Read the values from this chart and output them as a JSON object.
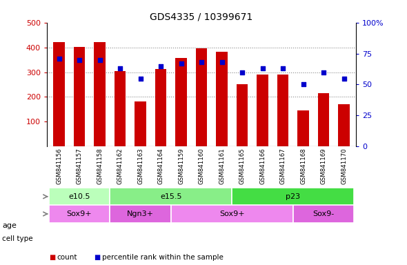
{
  "title": "GDS4335 / 10399671",
  "samples": [
    "GSM841156",
    "GSM841157",
    "GSM841158",
    "GSM841162",
    "GSM841163",
    "GSM841164",
    "GSM841159",
    "GSM841160",
    "GSM841161",
    "GSM841165",
    "GSM841166",
    "GSM841167",
    "GSM841168",
    "GSM841169",
    "GSM841170"
  ],
  "counts": [
    420,
    403,
    422,
    305,
    183,
    313,
    358,
    397,
    383,
    252,
    291,
    291,
    145,
    215,
    172
  ],
  "percentiles": [
    71,
    70,
    70,
    63,
    55,
    65,
    67,
    68,
    68,
    60,
    63,
    63,
    50,
    60,
    55
  ],
  "ylim_left": [
    0,
    500
  ],
  "ylim_right": [
    0,
    100
  ],
  "yticks_left": [
    100,
    200,
    300,
    400,
    500
  ],
  "yticks_right": [
    0,
    25,
    50,
    75,
    100
  ],
  "ytick_right_labels": [
    "0",
    "25",
    "50",
    "75",
    "100%"
  ],
  "age_groups": [
    {
      "label": "e10.5",
      "start": 0,
      "end": 3,
      "color": "#bbffbb"
    },
    {
      "label": "e15.5",
      "start": 3,
      "end": 9,
      "color": "#88ee88"
    },
    {
      "label": "p23",
      "start": 9,
      "end": 15,
      "color": "#44dd44"
    }
  ],
  "cell_type_groups": [
    {
      "label": "Sox9+",
      "start": 0,
      "end": 3,
      "color": "#ee88ee"
    },
    {
      "label": "Ngn3+",
      "start": 3,
      "end": 6,
      "color": "#dd66dd"
    },
    {
      "label": "Sox9+",
      "start": 6,
      "end": 12,
      "color": "#ee88ee"
    },
    {
      "label": "Sox9-",
      "start": 12,
      "end": 15,
      "color": "#dd66dd"
    }
  ],
  "bar_color": "#cc0000",
  "dot_color": "#0000cc",
  "left_tick_color": "#cc0000",
  "right_tick_color": "#0000cc",
  "grid_color": "#888888",
  "sample_bg_color": "#cccccc",
  "plot_bg": "#ffffff",
  "bar_bottom": 0
}
